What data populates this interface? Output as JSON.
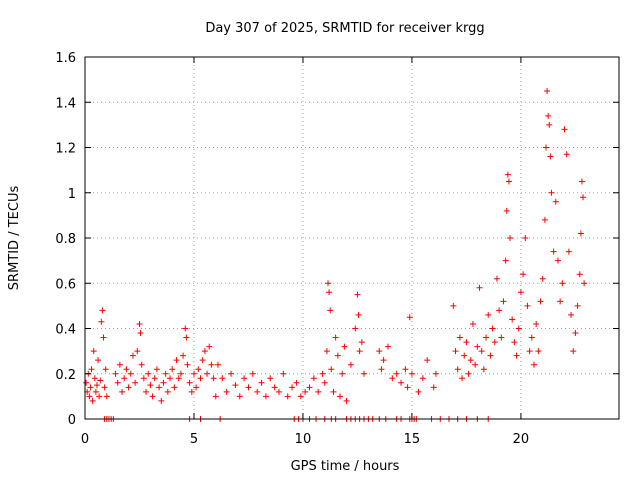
{
  "chart_data": {
    "type": "scatter",
    "title": "Day 307 of 2025, SRMTID for receiver krgg",
    "xlabel": "GPS time / hours",
    "ylabel": "SRMTID / TECUs",
    "xlim": [
      0,
      24.5
    ],
    "ylim": [
      0,
      1.6
    ],
    "xticks": [
      0,
      5,
      10,
      15,
      20
    ],
    "yticks": [
      0,
      0.2,
      0.4,
      0.6,
      0.8,
      1,
      1.2,
      1.4,
      1.6
    ],
    "ytick_labels": [
      "0",
      "0.2",
      "0.4",
      "0.6",
      "0.8",
      "1",
      "1.2",
      "1.4",
      "1.6"
    ],
    "grid": true,
    "marker": "+",
    "color": "#ff0000",
    "series": [
      {
        "name": "SRMTID",
        "points": [
          [
            0.05,
            0.16
          ],
          [
            0.1,
            0.12
          ],
          [
            0.15,
            0.2
          ],
          [
            0.2,
            0.1
          ],
          [
            0.25,
            0.14
          ],
          [
            0.3,
            0.22
          ],
          [
            0.35,
            0.08
          ],
          [
            0.4,
            0.3
          ],
          [
            0.45,
            0.18
          ],
          [
            0.5,
            0.12
          ],
          [
            0.55,
            0.15
          ],
          [
            0.6,
            0.26
          ],
          [
            0.65,
            0.1
          ],
          [
            0.7,
            0.17
          ],
          [
            0.75,
            0.43
          ],
          [
            0.8,
            0.48
          ],
          [
            0.85,
            0.36
          ],
          [
            0.9,
            0.14
          ],
          [
            0.95,
            0.22
          ],
          [
            1.0,
            0.1
          ],
          [
            1.4,
            0.2
          ],
          [
            1.5,
            0.16
          ],
          [
            1.6,
            0.24
          ],
          [
            1.7,
            0.12
          ],
          [
            1.8,
            0.18
          ],
          [
            1.9,
            0.22
          ],
          [
            2.0,
            0.14
          ],
          [
            2.1,
            0.2
          ],
          [
            2.2,
            0.28
          ],
          [
            2.3,
            0.16
          ],
          [
            2.4,
            0.3
          ],
          [
            2.5,
            0.42
          ],
          [
            2.55,
            0.38
          ],
          [
            2.6,
            0.24
          ],
          [
            2.7,
            0.18
          ],
          [
            2.8,
            0.12
          ],
          [
            2.9,
            0.2
          ],
          [
            3.0,
            0.15
          ],
          [
            3.1,
            0.1
          ],
          [
            3.2,
            0.18
          ],
          [
            3.3,
            0.22
          ],
          [
            3.4,
            0.14
          ],
          [
            3.5,
            0.08
          ],
          [
            3.6,
            0.16
          ],
          [
            3.7,
            0.2
          ],
          [
            3.8,
            0.12
          ],
          [
            3.9,
            0.18
          ],
          [
            4.0,
            0.22
          ],
          [
            4.1,
            0.14
          ],
          [
            4.2,
            0.26
          ],
          [
            4.3,
            0.18
          ],
          [
            4.4,
            0.2
          ],
          [
            4.5,
            0.28
          ],
          [
            4.6,
            0.4
          ],
          [
            4.65,
            0.36
          ],
          [
            4.7,
            0.24
          ],
          [
            4.8,
            0.16
          ],
          [
            4.9,
            0.12
          ],
          [
            5.0,
            0.2
          ],
          [
            5.1,
            0.14
          ],
          [
            5.2,
            0.22
          ],
          [
            5.3,
            0.18
          ],
          [
            5.4,
            0.26
          ],
          [
            5.5,
            0.3
          ],
          [
            5.6,
            0.2
          ],
          [
            5.7,
            0.32
          ],
          [
            5.8,
            0.24
          ],
          [
            5.9,
            0.18
          ],
          [
            6.0,
            0.1
          ],
          [
            6.1,
            0.24
          ],
          [
            6.3,
            0.18
          ],
          [
            6.5,
            0.12
          ],
          [
            6.7,
            0.2
          ],
          [
            6.9,
            0.15
          ],
          [
            7.1,
            0.1
          ],
          [
            7.3,
            0.18
          ],
          [
            7.5,
            0.14
          ],
          [
            7.7,
            0.2
          ],
          [
            7.9,
            0.12
          ],
          [
            8.1,
            0.16
          ],
          [
            8.3,
            0.1
          ],
          [
            8.5,
            0.18
          ],
          [
            8.7,
            0.14
          ],
          [
            8.9,
            0.12
          ],
          [
            9.1,
            0.2
          ],
          [
            9.3,
            0.1
          ],
          [
            9.5,
            0.14
          ],
          [
            9.7,
            0.16
          ],
          [
            9.9,
            0.1
          ],
          [
            10.1,
            0.12
          ],
          [
            10.3,
            0.14
          ],
          [
            10.5,
            0.18
          ],
          [
            10.7,
            0.12
          ],
          [
            10.9,
            0.2
          ],
          [
            11.0,
            0.16
          ],
          [
            11.1,
            0.3
          ],
          [
            11.15,
            0.6
          ],
          [
            11.2,
            0.56
          ],
          [
            11.25,
            0.48
          ],
          [
            11.3,
            0.22
          ],
          [
            11.4,
            0.12
          ],
          [
            11.5,
            0.36
          ],
          [
            11.6,
            0.28
          ],
          [
            11.7,
            0.1
          ],
          [
            11.8,
            0.2
          ],
          [
            11.9,
            0.32
          ],
          [
            12.0,
            0.08
          ],
          [
            12.2,
            0.24
          ],
          [
            12.4,
            0.4
          ],
          [
            12.5,
            0.55
          ],
          [
            12.55,
            0.46
          ],
          [
            12.6,
            0.3
          ],
          [
            12.7,
            0.34
          ],
          [
            12.8,
            0.2
          ],
          [
            13.5,
            0.3
          ],
          [
            13.6,
            0.22
          ],
          [
            13.7,
            0.26
          ],
          [
            13.9,
            0.32
          ],
          [
            14.1,
            0.18
          ],
          [
            14.3,
            0.2
          ],
          [
            14.5,
            0.16
          ],
          [
            14.7,
            0.22
          ],
          [
            14.8,
            0.14
          ],
          [
            14.9,
            0.45
          ],
          [
            15.0,
            0.2
          ],
          [
            15.3,
            0.12
          ],
          [
            15.5,
            0.18
          ],
          [
            15.7,
            0.26
          ],
          [
            16.0,
            0.14
          ],
          [
            16.1,
            0.2
          ],
          [
            16.9,
            0.5
          ],
          [
            17.0,
            0.3
          ],
          [
            17.1,
            0.22
          ],
          [
            17.2,
            0.36
          ],
          [
            17.3,
            0.18
          ],
          [
            17.4,
            0.28
          ],
          [
            17.5,
            0.34
          ],
          [
            17.6,
            0.2
          ],
          [
            17.7,
            0.26
          ],
          [
            17.8,
            0.42
          ],
          [
            17.9,
            0.24
          ],
          [
            18.0,
            0.32
          ],
          [
            18.1,
            0.58
          ],
          [
            18.2,
            0.3
          ],
          [
            18.3,
            0.22
          ],
          [
            18.4,
            0.36
          ],
          [
            18.5,
            0.46
          ],
          [
            18.6,
            0.28
          ],
          [
            18.7,
            0.4
          ],
          [
            18.8,
            0.34
          ],
          [
            18.9,
            0.62
          ],
          [
            19.0,
            0.48
          ],
          [
            19.1,
            0.36
          ],
          [
            19.2,
            0.52
          ],
          [
            19.3,
            0.7
          ],
          [
            19.35,
            0.92
          ],
          [
            19.4,
            1.08
          ],
          [
            19.45,
            1.05
          ],
          [
            19.5,
            0.8
          ],
          [
            19.6,
            0.44
          ],
          [
            19.7,
            0.34
          ],
          [
            19.8,
            0.28
          ],
          [
            19.9,
            0.4
          ],
          [
            20.0,
            0.56
          ],
          [
            20.1,
            0.64
          ],
          [
            20.2,
            0.8
          ],
          [
            20.3,
            0.5
          ],
          [
            20.4,
            0.3
          ],
          [
            20.5,
            0.36
          ],
          [
            20.6,
            0.24
          ],
          [
            20.7,
            0.42
          ],
          [
            20.8,
            0.3
          ],
          [
            20.9,
            0.52
          ],
          [
            21.0,
            0.62
          ],
          [
            21.1,
            0.88
          ],
          [
            21.15,
            1.2
          ],
          [
            21.2,
            1.45
          ],
          [
            21.25,
            1.34
          ],
          [
            21.3,
            1.3
          ],
          [
            21.35,
            1.16
          ],
          [
            21.4,
            1.0
          ],
          [
            21.5,
            0.74
          ],
          [
            21.6,
            0.96
          ],
          [
            21.7,
            0.7
          ],
          [
            21.8,
            0.52
          ],
          [
            21.9,
            0.6
          ],
          [
            22.0,
            1.28
          ],
          [
            22.1,
            1.17
          ],
          [
            22.2,
            0.74
          ],
          [
            22.3,
            0.46
          ],
          [
            22.4,
            0.3
          ],
          [
            22.5,
            0.38
          ],
          [
            22.6,
            0.5
          ],
          [
            22.7,
            0.64
          ],
          [
            22.75,
            0.82
          ],
          [
            22.8,
            1.05
          ],
          [
            22.85,
            0.98
          ],
          [
            22.9,
            0.6
          ]
        ]
      }
    ],
    "zero_points_x": [
      0.9,
      1.0,
      1.1,
      1.2,
      1.3,
      4.8,
      5.3,
      6.2,
      9.6,
      9.8,
      10.0,
      10.3,
      10.6,
      11.0,
      11.3,
      11.5,
      12.0,
      12.2,
      12.4,
      12.6,
      12.8,
      13.0,
      13.2,
      13.5,
      13.8,
      14.3,
      14.5,
      14.9,
      15.0,
      15.1,
      15.2,
      15.9,
      16.3,
      16.7,
      17.1,
      17.5,
      18.0,
      18.5
    ]
  }
}
